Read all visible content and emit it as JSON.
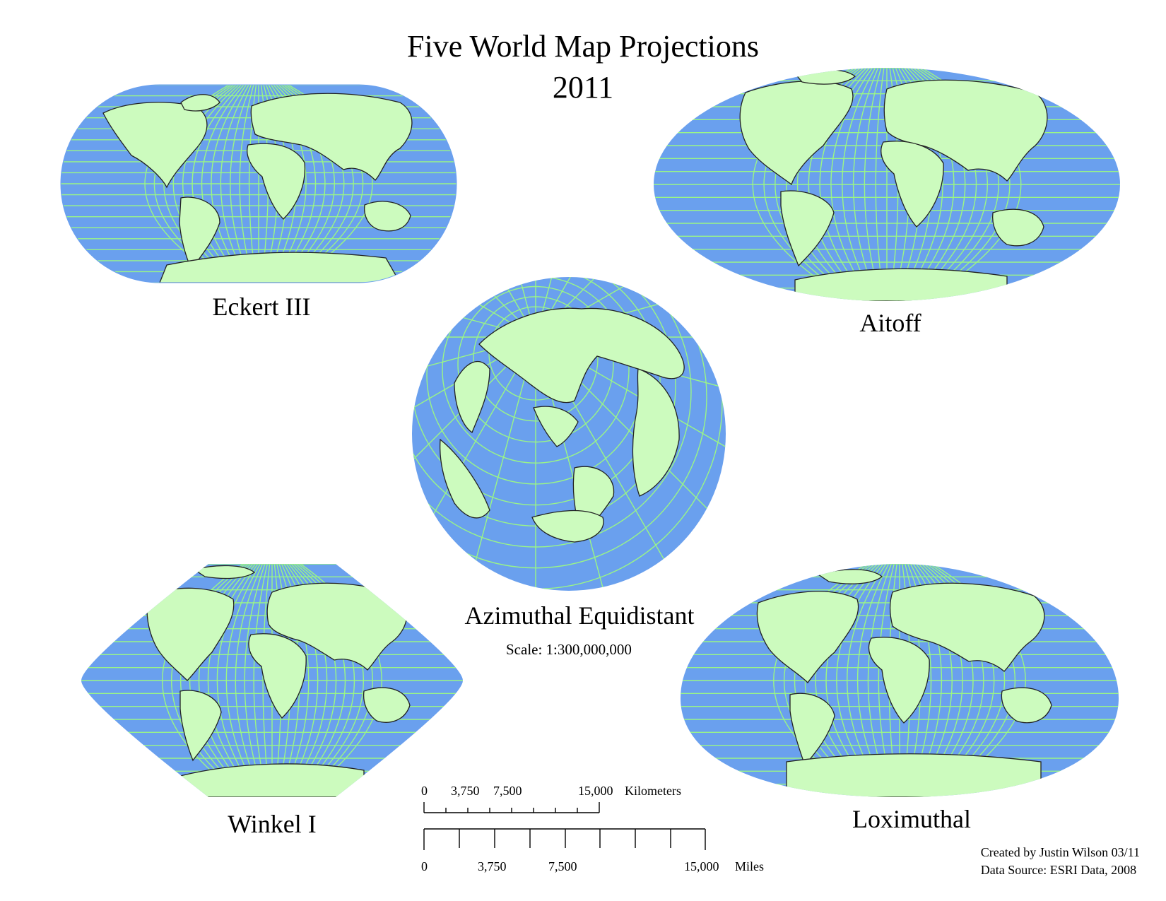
{
  "title": {
    "line1": "Five World Map Projections",
    "line2": "2011"
  },
  "maps": {
    "eckert": {
      "label": "Eckert III"
    },
    "aitoff": {
      "label": "Aitoff"
    },
    "azimuthal": {
      "label": "Azimuthal Equidistant",
      "scale_text": "Scale: 1:300,000,000"
    },
    "winkel": {
      "label": "Winkel I"
    },
    "loximuthal": {
      "label": "Loximuthal"
    }
  },
  "scale_bar": {
    "km": {
      "tick_labels": [
        "0",
        "3,750",
        "7,500",
        "15,000"
      ],
      "unit": "Kilometers"
    },
    "miles": {
      "tick_labels": [
        "0",
        "3,750",
        "7,500",
        "15,000"
      ],
      "unit": "Miles"
    }
  },
  "credits": {
    "line1": "Created by Justin Wilson 03/11",
    "line2": "Data Source: ESRI Data, 2008"
  },
  "colors": {
    "ocean": "#6aa0ee",
    "land": "#ccfbbe",
    "graticule": "#9af586",
    "border": "#333333"
  }
}
